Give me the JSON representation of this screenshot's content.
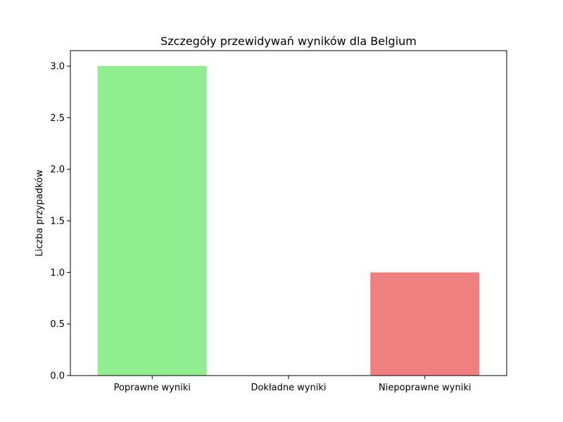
{
  "chart_data": {
    "type": "bar",
    "title": "Szczegóły przewidywań wyników dla Belgium",
    "xlabel": "",
    "ylabel": "Liczba przypadków",
    "categories": [
      "Poprawne wyniki",
      "Dokładne wyniki",
      "Niepoprawne wyniki"
    ],
    "values": [
      3,
      0,
      1
    ],
    "colors": [
      "#90ee90",
      "#add8e6",
      "#f08080"
    ],
    "ylim": [
      0,
      3.15
    ],
    "yticks": [
      0.0,
      0.5,
      1.0,
      1.5,
      2.0,
      2.5,
      3.0
    ],
    "ytick_labels": [
      "0.0",
      "0.5",
      "1.0",
      "1.5",
      "2.0",
      "2.5",
      "3.0"
    ],
    "grid": false,
    "legend": "none"
  }
}
